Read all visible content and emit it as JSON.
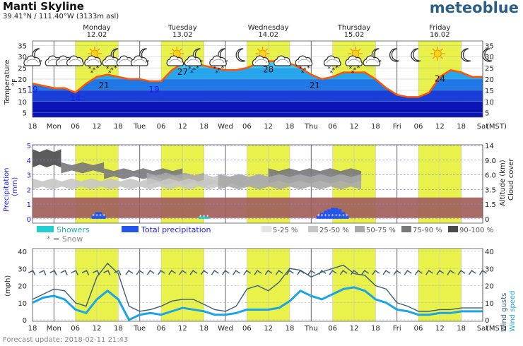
{
  "header": {
    "location": "Manti Skyline",
    "coords_html": "39.41°N / 111.40°W (3133m asl)",
    "brand": "meteoblue"
  },
  "footer": {
    "update": "Forecast update: 2018-02-11 21:43"
  },
  "timezone": "(MST)",
  "days": [
    {
      "name": "Monday",
      "date": "12.02"
    },
    {
      "name": "Tuesday",
      "date": "13.02"
    },
    {
      "name": "Wednesday",
      "date": "14.02"
    },
    {
      "name": "Thursday",
      "date": "15.02"
    },
    {
      "name": "Friday",
      "date": "16.02"
    }
  ],
  "x_ticks": [
    "18",
    "Mon",
    "06",
    "12",
    "18",
    "Tue",
    "06",
    "12",
    "18",
    "Wed",
    "06",
    "12",
    "18",
    "Thu",
    "06",
    "12",
    "18",
    "Fri",
    "06",
    "12",
    "18",
    "Sat"
  ],
  "x_hours": [
    18,
    24,
    30,
    36,
    42,
    48,
    54,
    60,
    66,
    72,
    78,
    84,
    90,
    96,
    102,
    108,
    114,
    120,
    126,
    132,
    138,
    144
  ],
  "daylight": [
    [
      30,
      42
    ],
    [
      54,
      66
    ],
    [
      78,
      90
    ],
    [
      102,
      114
    ],
    [
      126,
      138
    ]
  ],
  "colors": {
    "temp_line": "#ff5500",
    "daylight": "#e9f24a",
    "showers": "#20d0d0",
    "total_precip": "#2255ee",
    "snow": "#ffffff",
    "cloud_low": "#a0605a",
    "wind_speed": "#1aa5e8",
    "wind_gust": "#3b5e78",
    "label_blue": "#1a1aff",
    "brand": "#2b5f86"
  },
  "chart_data": [
    {
      "type": "area",
      "title": "Temperature",
      "ylabel": "Temperature °F",
      "ylim": [
        3,
        37
      ],
      "yticks": [
        5,
        10,
        15,
        20,
        25,
        30,
        35
      ],
      "x": [
        18,
        21,
        24,
        27,
        30,
        33,
        36,
        39,
        42,
        45,
        48,
        51,
        54,
        57,
        60,
        63,
        66,
        69,
        72,
        75,
        78,
        81,
        84,
        87,
        90,
        93,
        96,
        99,
        102,
        105,
        108,
        111,
        114,
        117,
        120,
        123,
        126,
        129,
        132,
        135,
        138,
        141,
        144
      ],
      "series": [
        {
          "values": [
            18,
            17,
            16,
            16,
            14,
            18,
            21,
            22,
            21,
            20,
            20,
            19,
            19,
            24,
            27,
            27,
            26,
            25,
            24,
            24,
            25,
            27,
            28,
            28,
            27,
            25,
            22,
            20,
            21,
            23,
            23,
            23,
            20,
            16,
            13,
            12,
            12,
            14,
            21,
            24,
            23,
            21,
            21
          ]
        }
      ],
      "labels": [
        {
          "x": 18,
          "value": "19"
        },
        {
          "x": 30,
          "value": "14"
        },
        {
          "x": 38,
          "value": "21"
        },
        {
          "x": 52,
          "value": "19"
        },
        {
          "x": 60,
          "value": "27"
        },
        {
          "x": 84,
          "value": "28"
        },
        {
          "x": 97,
          "value": "21"
        },
        {
          "x": 132,
          "value": "24"
        }
      ],
      "icons": [
        {
          "x": 18,
          "type": "moon-cloud"
        },
        {
          "x": 24,
          "type": "cloud"
        },
        {
          "x": 27,
          "type": "cloud"
        },
        {
          "x": 30,
          "type": "cloud"
        },
        {
          "x": 35,
          "type": "sun-cloud-snow"
        },
        {
          "x": 40,
          "type": "moon-cloud-snow"
        },
        {
          "x": 44,
          "type": "cloud"
        },
        {
          "x": 48,
          "type": "moon-cloud"
        },
        {
          "x": 58,
          "type": "sun-cloud"
        },
        {
          "x": 63,
          "type": "moon-cloud-snow"
        },
        {
          "x": 70,
          "type": "moon-cloud-snow"
        },
        {
          "x": 75,
          "type": "moon"
        },
        {
          "x": 82,
          "type": "sun-cloud"
        },
        {
          "x": 88,
          "type": "cloud"
        },
        {
          "x": 94,
          "type": "cloud-snow"
        },
        {
          "x": 102,
          "type": "cloud-snow"
        },
        {
          "x": 108,
          "type": "sun-cloud-snow"
        },
        {
          "x": 113,
          "type": "moon-cloud"
        },
        {
          "x": 118,
          "type": "moon"
        },
        {
          "x": 124,
          "type": "moon"
        },
        {
          "x": 131,
          "type": "sun"
        },
        {
          "x": 138,
          "type": "moon"
        },
        {
          "x": 144,
          "type": "moon"
        }
      ]
    },
    {
      "type": "bar",
      "title": "Precipitation",
      "ylabel": "Precipitation (mm)",
      "ylabel2": "Altitude (km) Cloud cover",
      "ylim": [
        0,
        5
      ],
      "yticks_left": [
        0,
        1,
        2,
        3,
        4,
        5
      ],
      "yticks_right": [
        "0",
        "1.5",
        "3.5",
        "6.0",
        "9.0",
        "14"
      ],
      "snow_label": "* = Snow",
      "total_precipitation": [
        {
          "x": 35,
          "value": 0.25
        },
        {
          "x": 36,
          "value": 0.45
        },
        {
          "x": 37,
          "value": 0.45
        },
        {
          "x": 38,
          "value": 0.25
        },
        {
          "x": 98,
          "value": 0.2
        },
        {
          "x": 99,
          "value": 0.4
        },
        {
          "x": 100,
          "value": 0.55
        },
        {
          "x": 101,
          "value": 0.65
        },
        {
          "x": 102,
          "value": 0.75
        },
        {
          "x": 103,
          "value": 0.75
        },
        {
          "x": 104,
          "value": 0.65
        },
        {
          "x": 105,
          "value": 0.45
        },
        {
          "x": 106,
          "value": 0.25
        }
      ],
      "showers": [
        {
          "x": 65,
          "value": 0.15
        },
        {
          "x": 66,
          "value": 0.15
        },
        {
          "x": 67,
          "value": 0.1
        }
      ],
      "cloud_legend": [
        "5-25 %",
        "25-50 %",
        "50-75 %",
        "75-90 %",
        "90-100 %"
      ],
      "cloud_layers": [
        {
          "x": [
            18,
            26
          ],
          "top": 4.7,
          "bottom": 3.6,
          "level": 4
        },
        {
          "x": [
            26,
            38
          ],
          "top": 3.8,
          "bottom": 3.2,
          "level": 3
        },
        {
          "x": [
            38,
            60
          ],
          "top": 3.4,
          "bottom": 2.8,
          "level": 3
        },
        {
          "x": [
            50,
            66
          ],
          "top": 3.1,
          "bottom": 2.4,
          "level": 2
        },
        {
          "x": [
            66,
            84
          ],
          "top": 3.0,
          "bottom": 2.3,
          "level": 1
        },
        {
          "x": [
            84,
            110
          ],
          "top": 3.4,
          "bottom": 2.5,
          "level": 3
        },
        {
          "x": [
            18,
            70
          ],
          "top": 2.7,
          "bottom": 2.1,
          "level": 1
        },
        {
          "x": [
            70,
            110
          ],
          "top": 3.0,
          "bottom": 2.1,
          "level": 2
        }
      ],
      "low_cloud_band": {
        "x": [
          18,
          144
        ],
        "top": 1.45,
        "bottom": 0.05
      }
    },
    {
      "type": "line",
      "title": "Wind",
      "ylabel": "(mph)",
      "ylabel2": "Wind gusts Wind speed",
      "ylim": [
        0,
        40
      ],
      "yticks": [
        0,
        10,
        20,
        30,
        40
      ],
      "x": [
        18,
        21,
        24,
        27,
        30,
        33,
        36,
        39,
        42,
        45,
        48,
        51,
        54,
        57,
        60,
        63,
        66,
        69,
        72,
        75,
        78,
        81,
        84,
        87,
        90,
        93,
        96,
        99,
        102,
        105,
        108,
        111,
        114,
        117,
        120,
        123,
        126,
        129,
        132,
        135,
        138,
        141,
        144
      ],
      "series": [
        {
          "name": "Wind gusts",
          "values": [
            12,
            15,
            18,
            17,
            10,
            8,
            25,
            33,
            27,
            8,
            5,
            6,
            8,
            11,
            12,
            12,
            9,
            6,
            5,
            8,
            18,
            20,
            17,
            22,
            30,
            29,
            25,
            28,
            30,
            32,
            27,
            26,
            20,
            18,
            10,
            8,
            5,
            5,
            6,
            6,
            7,
            7,
            7
          ]
        },
        {
          "name": "Wind speed",
          "values": [
            10,
            13,
            14,
            12,
            6,
            4,
            12,
            17,
            12,
            0,
            3,
            4,
            3,
            5,
            7,
            6,
            5,
            3,
            3,
            4,
            6,
            6,
            6,
            7,
            11,
            17,
            14,
            12,
            15,
            18,
            19,
            17,
            12,
            10,
            6,
            5,
            3,
            3,
            4,
            4,
            5,
            5,
            5
          ]
        }
      ],
      "arrow_row_value": 28,
      "arrow_x": [
        18,
        21,
        24,
        27,
        30,
        33,
        36,
        39,
        42,
        45,
        48,
        51,
        54,
        57,
        60,
        63,
        66,
        69,
        72,
        75,
        78,
        81,
        84,
        87,
        90,
        93,
        96,
        99,
        102,
        105,
        108,
        111,
        114,
        117,
        120,
        123,
        126,
        129,
        132,
        135,
        138,
        141,
        144
      ]
    }
  ]
}
